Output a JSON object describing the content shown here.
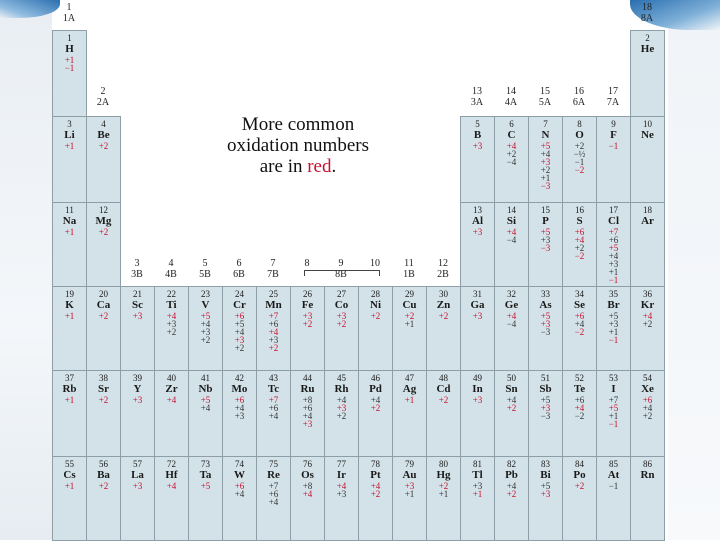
{
  "note": {
    "line1": "More common",
    "line2": "oxidation numbers",
    "line3a": "are in ",
    "line3b": "red",
    "line3c": "."
  },
  "colors": {
    "common": "#c8102e",
    "cell": "#d3e2e8",
    "border": "#8e9ea6"
  },
  "groups": [
    {
      "num": "1",
      "sub": "1A",
      "col": 1,
      "row": 0
    },
    {
      "num": "18",
      "sub": "8A",
      "col": 18,
      "row": 0
    },
    {
      "num": "2",
      "sub": "2A",
      "col": 2,
      "row": 1
    },
    {
      "num": "13",
      "sub": "3A",
      "col": 13,
      "row": 1
    },
    {
      "num": "14",
      "sub": "4A",
      "col": 14,
      "row": 1
    },
    {
      "num": "15",
      "sub": "5A",
      "col": 15,
      "row": 1
    },
    {
      "num": "16",
      "sub": "6A",
      "col": 16,
      "row": 1
    },
    {
      "num": "17",
      "sub": "7A",
      "col": 17,
      "row": 1
    },
    {
      "num": "3",
      "sub": "3B",
      "col": 3,
      "row": 3
    },
    {
      "num": "4",
      "sub": "4B",
      "col": 4,
      "row": 3
    },
    {
      "num": "5",
      "sub": "5B",
      "col": 5,
      "row": 3
    },
    {
      "num": "6",
      "sub": "6B",
      "col": 6,
      "row": 3
    },
    {
      "num": "7",
      "sub": "7B",
      "col": 7,
      "row": 3
    },
    {
      "num": "8",
      "sub": "",
      "col": 8,
      "row": 3
    },
    {
      "num": "9",
      "sub": "8B",
      "col": 9,
      "row": 3
    },
    {
      "num": "10",
      "sub": "",
      "col": 10,
      "row": 3
    },
    {
      "num": "11",
      "sub": "1B",
      "col": 11,
      "row": 3
    },
    {
      "num": "12",
      "sub": "2B",
      "col": 12,
      "row": 3
    }
  ],
  "elements": [
    {
      "n": "1",
      "s": "H",
      "c": 1,
      "p": 1,
      "ox": [
        [
          "+1",
          1
        ],
        [
          "−1",
          1
        ]
      ]
    },
    {
      "n": "2",
      "s": "He",
      "c": 18,
      "p": 1,
      "ox": []
    },
    {
      "n": "3",
      "s": "Li",
      "c": 1,
      "p": 2,
      "ox": [
        [
          "+1",
          1
        ]
      ]
    },
    {
      "n": "4",
      "s": "Be",
      "c": 2,
      "p": 2,
      "ox": [
        [
          "+2",
          1
        ]
      ]
    },
    {
      "n": "5",
      "s": "B",
      "c": 13,
      "p": 2,
      "ox": [
        [
          "+3",
          1
        ]
      ]
    },
    {
      "n": "6",
      "s": "C",
      "c": 14,
      "p": 2,
      "ox": [
        [
          "+4",
          1
        ],
        [
          "+2",
          0
        ],
        [
          "−4",
          0
        ]
      ]
    },
    {
      "n": "7",
      "s": "N",
      "c": 15,
      "p": 2,
      "ox": [
        [
          "+5",
          1
        ],
        [
          "+4",
          0
        ],
        [
          "+3",
          1
        ],
        [
          "+2",
          0
        ],
        [
          "+1",
          0
        ],
        [
          "−3",
          1
        ]
      ]
    },
    {
      "n": "8",
      "s": "O",
      "c": 16,
      "p": 2,
      "ox": [
        [
          "+2",
          0
        ],
        [
          "−½",
          0
        ],
        [
          "−1",
          0
        ],
        [
          "−2",
          1
        ]
      ]
    },
    {
      "n": "9",
      "s": "F",
      "c": 17,
      "p": 2,
      "ox": [
        [
          "−1",
          1
        ]
      ]
    },
    {
      "n": "10",
      "s": "Ne",
      "c": 18,
      "p": 2,
      "ox": []
    },
    {
      "n": "11",
      "s": "Na",
      "c": 1,
      "p": 3,
      "ox": [
        [
          "+1",
          1
        ]
      ]
    },
    {
      "n": "12",
      "s": "Mg",
      "c": 2,
      "p": 3,
      "ox": [
        [
          "+2",
          1
        ]
      ]
    },
    {
      "n": "13",
      "s": "Al",
      "c": 13,
      "p": 3,
      "ox": [
        [
          "+3",
          1
        ]
      ]
    },
    {
      "n": "14",
      "s": "Si",
      "c": 14,
      "p": 3,
      "ox": [
        [
          "+4",
          1
        ],
        [
          "−4",
          0
        ]
      ]
    },
    {
      "n": "15",
      "s": "P",
      "c": 15,
      "p": 3,
      "ox": [
        [
          "+5",
          1
        ],
        [
          "+3",
          0
        ],
        [
          "−3",
          1
        ]
      ]
    },
    {
      "n": "16",
      "s": "S",
      "c": 16,
      "p": 3,
      "ox": [
        [
          "+6",
          1
        ],
        [
          "+4",
          1
        ],
        [
          "+2",
          0
        ],
        [
          "−2",
          1
        ]
      ]
    },
    {
      "n": "17",
      "s": "Cl",
      "c": 17,
      "p": 3,
      "ox": [
        [
          "+7",
          1
        ],
        [
          "+6",
          0
        ],
        [
          "+5",
          1
        ],
        [
          "+4",
          0
        ],
        [
          "+3",
          0
        ],
        [
          "+1",
          0
        ],
        [
          "−1",
          1
        ]
      ]
    },
    {
      "n": "18",
      "s": "Ar",
      "c": 18,
      "p": 3,
      "ox": []
    },
    {
      "n": "19",
      "s": "K",
      "c": 1,
      "p": 4,
      "ox": [
        [
          "+1",
          1
        ]
      ]
    },
    {
      "n": "20",
      "s": "Ca",
      "c": 2,
      "p": 4,
      "ox": [
        [
          "+2",
          1
        ]
      ]
    },
    {
      "n": "21",
      "s": "Sc",
      "c": 3,
      "p": 4,
      "ox": [
        [
          "+3",
          1
        ]
      ]
    },
    {
      "n": "22",
      "s": "Ti",
      "c": 4,
      "p": 4,
      "ox": [
        [
          "+4",
          1
        ],
        [
          "+3",
          0
        ],
        [
          "+2",
          0
        ]
      ]
    },
    {
      "n": "23",
      "s": "V",
      "c": 5,
      "p": 4,
      "ox": [
        [
          "+5",
          1
        ],
        [
          "+4",
          0
        ],
        [
          "+3",
          0
        ],
        [
          "+2",
          0
        ]
      ]
    },
    {
      "n": "24",
      "s": "Cr",
      "c": 6,
      "p": 4,
      "ox": [
        [
          "+6",
          1
        ],
        [
          "+5",
          0
        ],
        [
          "+4",
          0
        ],
        [
          "+3",
          1
        ],
        [
          "+2",
          0
        ]
      ]
    },
    {
      "n": "25",
      "s": "Mn",
      "c": 7,
      "p": 4,
      "ox": [
        [
          "+7",
          1
        ],
        [
          "+6",
          0
        ],
        [
          "+4",
          1
        ],
        [
          "+3",
          0
        ],
        [
          "+2",
          1
        ]
      ]
    },
    {
      "n": "26",
      "s": "Fe",
      "c": 8,
      "p": 4,
      "ox": [
        [
          "+3",
          1
        ],
        [
          "+2",
          1
        ]
      ]
    },
    {
      "n": "27",
      "s": "Co",
      "c": 9,
      "p": 4,
      "ox": [
        [
          "+3",
          1
        ],
        [
          "+2",
          1
        ]
      ]
    },
    {
      "n": "28",
      "s": "Ni",
      "c": 10,
      "p": 4,
      "ox": [
        [
          "+2",
          1
        ]
      ]
    },
    {
      "n": "29",
      "s": "Cu",
      "c": 11,
      "p": 4,
      "ox": [
        [
          "+2",
          1
        ],
        [
          "+1",
          0
        ]
      ]
    },
    {
      "n": "30",
      "s": "Zn",
      "c": 12,
      "p": 4,
      "ox": [
        [
          "+2",
          1
        ]
      ]
    },
    {
      "n": "31",
      "s": "Ga",
      "c": 13,
      "p": 4,
      "ox": [
        [
          "+3",
          1
        ]
      ]
    },
    {
      "n": "32",
      "s": "Ge",
      "c": 14,
      "p": 4,
      "ox": [
        [
          "+4",
          1
        ],
        [
          "−4",
          0
        ]
      ]
    },
    {
      "n": "33",
      "s": "As",
      "c": 15,
      "p": 4,
      "ox": [
        [
          "+5",
          1
        ],
        [
          "+3",
          1
        ],
        [
          "−3",
          0
        ]
      ]
    },
    {
      "n": "34",
      "s": "Se",
      "c": 16,
      "p": 4,
      "ox": [
        [
          "+6",
          1
        ],
        [
          "+4",
          0
        ],
        [
          "−2",
          1
        ]
      ]
    },
    {
      "n": "35",
      "s": "Br",
      "c": 17,
      "p": 4,
      "ox": [
        [
          "+5",
          0
        ],
        [
          "+3",
          0
        ],
        [
          "+1",
          0
        ],
        [
          "−1",
          1
        ]
      ]
    },
    {
      "n": "36",
      "s": "Kr",
      "c": 18,
      "p": 4,
      "ox": [
        [
          "+4",
          1
        ],
        [
          "+2",
          0
        ]
      ]
    },
    {
      "n": "37",
      "s": "Rb",
      "c": 1,
      "p": 5,
      "ox": [
        [
          "+1",
          1
        ]
      ]
    },
    {
      "n": "38",
      "s": "Sr",
      "c": 2,
      "p": 5,
      "ox": [
        [
          "+2",
          1
        ]
      ]
    },
    {
      "n": "39",
      "s": "Y",
      "c": 3,
      "p": 5,
      "ox": [
        [
          "+3",
          1
        ]
      ]
    },
    {
      "n": "40",
      "s": "Zr",
      "c": 4,
      "p": 5,
      "ox": [
        [
          "+4",
          1
        ]
      ]
    },
    {
      "n": "41",
      "s": "Nb",
      "c": 5,
      "p": 5,
      "ox": [
        [
          "+5",
          1
        ],
        [
          "+4",
          0
        ]
      ]
    },
    {
      "n": "42",
      "s": "Mo",
      "c": 6,
      "p": 5,
      "ox": [
        [
          "+6",
          1
        ],
        [
          "+4",
          0
        ],
        [
          "+3",
          0
        ]
      ]
    },
    {
      "n": "43",
      "s": "Tc",
      "c": 7,
      "p": 5,
      "ox": [
        [
          "+7",
          1
        ],
        [
          "+6",
          0
        ],
        [
          "+4",
          0
        ]
      ]
    },
    {
      "n": "44",
      "s": "Ru",
      "c": 8,
      "p": 5,
      "ox": [
        [
          "+8",
          0
        ],
        [
          "+6",
          0
        ],
        [
          "+4",
          0
        ],
        [
          "+3",
          1
        ]
      ]
    },
    {
      "n": "45",
      "s": "Rh",
      "c": 9,
      "p": 5,
      "ox": [
        [
          "+4",
          0
        ],
        [
          "+3",
          1
        ],
        [
          "+2",
          0
        ]
      ]
    },
    {
      "n": "46",
      "s": "Pd",
      "c": 10,
      "p": 5,
      "ox": [
        [
          "+4",
          0
        ],
        [
          "+2",
          1
        ]
      ]
    },
    {
      "n": "47",
      "s": "Ag",
      "c": 11,
      "p": 5,
      "ox": [
        [
          "+1",
          1
        ]
      ]
    },
    {
      "n": "48",
      "s": "Cd",
      "c": 12,
      "p": 5,
      "ox": [
        [
          "+2",
          1
        ]
      ]
    },
    {
      "n": "49",
      "s": "In",
      "c": 13,
      "p": 5,
      "ox": [
        [
          "+3",
          1
        ]
      ]
    },
    {
      "n": "50",
      "s": "Sn",
      "c": 14,
      "p": 5,
      "ox": [
        [
          "+4",
          0
        ],
        [
          "+2",
          1
        ]
      ]
    },
    {
      "n": "51",
      "s": "Sb",
      "c": 15,
      "p": 5,
      "ox": [
        [
          "+5",
          0
        ],
        [
          "+3",
          1
        ],
        [
          "−3",
          0
        ]
      ]
    },
    {
      "n": "52",
      "s": "Te",
      "c": 16,
      "p": 5,
      "ox": [
        [
          "+6",
          0
        ],
        [
          "+4",
          1
        ],
        [
          "−2",
          0
        ]
      ]
    },
    {
      "n": "53",
      "s": "I",
      "c": 17,
      "p": 5,
      "ox": [
        [
          "+7",
          0
        ],
        [
          "+5",
          1
        ],
        [
          "+1",
          0
        ],
        [
          "−1",
          1
        ]
      ]
    },
    {
      "n": "54",
      "s": "Xe",
      "c": 18,
      "p": 5,
      "ox": [
        [
          "+6",
          1
        ],
        [
          "+4",
          0
        ],
        [
          "+2",
          0
        ]
      ]
    },
    {
      "n": "55",
      "s": "Cs",
      "c": 1,
      "p": 6,
      "ox": [
        [
          "+1",
          1
        ]
      ]
    },
    {
      "n": "56",
      "s": "Ba",
      "c": 2,
      "p": 6,
      "ox": [
        [
          "+2",
          1
        ]
      ]
    },
    {
      "n": "57",
      "s": "La",
      "c": 3,
      "p": 6,
      "ox": [
        [
          "+3",
          1
        ]
      ]
    },
    {
      "n": "72",
      "s": "Hf",
      "c": 4,
      "p": 6,
      "ox": [
        [
          "+4",
          1
        ]
      ]
    },
    {
      "n": "73",
      "s": "Ta",
      "c": 5,
      "p": 6,
      "ox": [
        [
          "+5",
          1
        ]
      ]
    },
    {
      "n": "74",
      "s": "W",
      "c": 6,
      "p": 6,
      "ox": [
        [
          "+6",
          1
        ],
        [
          "+4",
          0
        ]
      ]
    },
    {
      "n": "75",
      "s": "Re",
      "c": 7,
      "p": 6,
      "ox": [
        [
          "+7",
          0
        ],
        [
          "+6",
          0
        ],
        [
          "+4",
          0
        ]
      ]
    },
    {
      "n": "76",
      "s": "Os",
      "c": 8,
      "p": 6,
      "ox": [
        [
          "+8",
          0
        ],
        [
          "+4",
          1
        ]
      ]
    },
    {
      "n": "77",
      "s": "Ir",
      "c": 9,
      "p": 6,
      "ox": [
        [
          "+4",
          1
        ],
        [
          "+3",
          0
        ]
      ]
    },
    {
      "n": "78",
      "s": "Pt",
      "c": 10,
      "p": 6,
      "ox": [
        [
          "+4",
          1
        ],
        [
          "+2",
          1
        ]
      ]
    },
    {
      "n": "79",
      "s": "Au",
      "c": 11,
      "p": 6,
      "ox": [
        [
          "+3",
          1
        ],
        [
          "+1",
          0
        ]
      ]
    },
    {
      "n": "80",
      "s": "Hg",
      "c": 12,
      "p": 6,
      "ox": [
        [
          "+2",
          1
        ],
        [
          "+1",
          0
        ]
      ]
    },
    {
      "n": "81",
      "s": "Tl",
      "c": 13,
      "p": 6,
      "ox": [
        [
          "+3",
          0
        ],
        [
          "+1",
          1
        ]
      ]
    },
    {
      "n": "82",
      "s": "Pb",
      "c": 14,
      "p": 6,
      "ox": [
        [
          "+4",
          0
        ],
        [
          "+2",
          1
        ]
      ]
    },
    {
      "n": "83",
      "s": "Bi",
      "c": 15,
      "p": 6,
      "ox": [
        [
          "+5",
          0
        ],
        [
          "+3",
          1
        ]
      ]
    },
    {
      "n": "84",
      "s": "Po",
      "c": 16,
      "p": 6,
      "ox": [
        [
          "+2",
          1
        ]
      ]
    },
    {
      "n": "85",
      "s": "At",
      "c": 17,
      "p": 6,
      "ox": [
        [
          "−1",
          0
        ]
      ]
    },
    {
      "n": "86",
      "s": "Rn",
      "c": 18,
      "p": 6,
      "ox": []
    }
  ]
}
